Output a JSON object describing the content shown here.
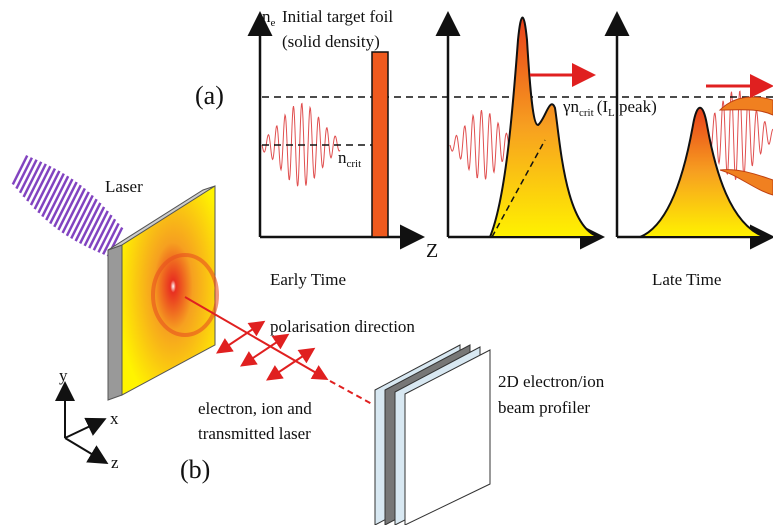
{
  "panel_a": {
    "label": "(a)",
    "density_axis": {
      "symbol": "n",
      "subscript": "e"
    },
    "foil_label": [
      "Initial  target foil",
      "(solid density)"
    ],
    "critical_label": {
      "symbol": "n",
      "subscript": "crit"
    },
    "peak_label": {
      "symbol": "γn",
      "subscript": "crit",
      "open": "(I",
      "paren_subscript": "L",
      "close": " peak)"
    },
    "z_axis": "Z",
    "early": "Early Time",
    "late": "Late Time"
  },
  "panel_b": {
    "label": "(b)",
    "laser": "Laser",
    "polarisation": "polarisation direction",
    "beam": [
      "electron, ion and",
      "transmitted laser"
    ],
    "profiler": [
      "2D electron/ion",
      "beam profiler"
    ],
    "axes": {
      "y": "y",
      "x": "x",
      "z": "z"
    }
  }
}
